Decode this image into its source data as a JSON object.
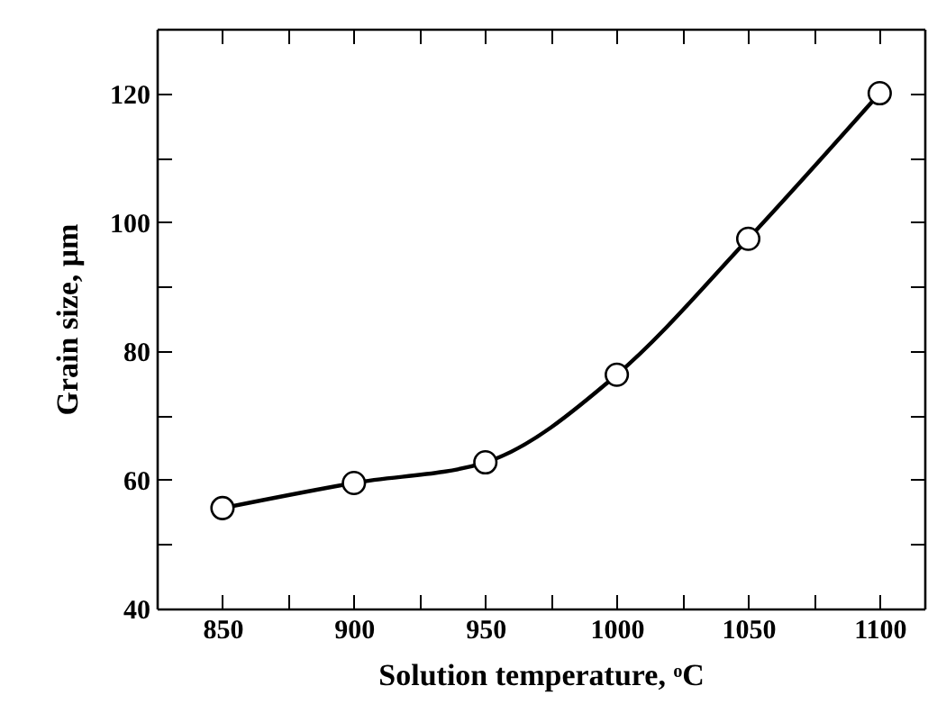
{
  "chart_data": {
    "type": "line",
    "xlabel": "Solution temperature, ᵒC",
    "ylabel": "Grain size, μm",
    "x": [
      850,
      900,
      950,
      1000,
      1050,
      1100
    ],
    "series": [
      {
        "color": "#000000",
        "values": [
          55.6,
          59.5,
          62.7,
          76.3,
          97.4,
          120
        ]
      }
    ],
    "xlim": [
      825,
      1117
    ],
    "ylim": [
      40,
      130
    ],
    "xticks": [
      850,
      {
        "value": 875,
        "label": null
      },
      900,
      {
        "value": 925,
        "label": null
      },
      950,
      {
        "value": 975,
        "label": null
      },
      1000,
      {
        "value": 1025,
        "label": null
      },
      1050,
      {
        "value": 1075,
        "label": null
      },
      1100
    ],
    "yticks": [
      40,
      {
        "value": 50,
        "label": null
      },
      60,
      {
        "value": 70,
        "label": null
      },
      80,
      {
        "value": 90,
        "label": null
      },
      100,
      {
        "value": 110,
        "label": null
      },
      120
    ],
    "marker": "circle",
    "line_style": "solid"
  }
}
